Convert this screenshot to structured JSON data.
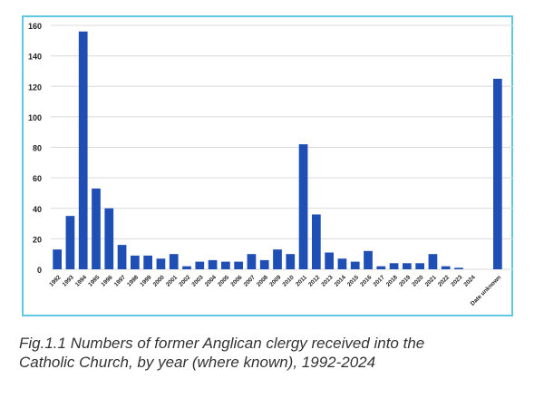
{
  "chart_data": {
    "type": "bar",
    "title": "",
    "xlabel": "",
    "ylabel": "",
    "ylim": [
      0,
      160
    ],
    "yticks": [
      0,
      20,
      40,
      60,
      80,
      100,
      120,
      140,
      160
    ],
    "grid": true,
    "legend": null,
    "bar_color": "#1f4fb5",
    "categories": [
      "1992",
      "1993",
      "1994",
      "1995",
      "1996",
      "1997",
      "1998",
      "1999",
      "2000",
      "2001",
      "2002",
      "2003",
      "2004",
      "2005",
      "2006",
      "2007",
      "2008",
      "2009",
      "2010",
      "2011",
      "2012",
      "2013",
      "2014",
      "2015",
      "2016",
      "2017",
      "2018",
      "2019",
      "2020",
      "2021",
      "2022",
      "2023",
      "2024",
      "",
      "Date unknown"
    ],
    "values": [
      13,
      35,
      156,
      53,
      40,
      16,
      9,
      9,
      7,
      10,
      2,
      5,
      6,
      5,
      5,
      10,
      6,
      13,
      10,
      82,
      36,
      11,
      7,
      5,
      12,
      2,
      4,
      4,
      4,
      10,
      2,
      1,
      0,
      null,
      125
    ]
  },
  "caption": {
    "line1": "Fig.1.1  Numbers of former Anglican clergy received into the",
    "line2": "Catholic Church, by year (where known), 1992-2024"
  },
  "colors": {
    "frame_border": "#5ec8e0",
    "gridline": "#d9d9d9",
    "bar": "#1f4fb5"
  }
}
